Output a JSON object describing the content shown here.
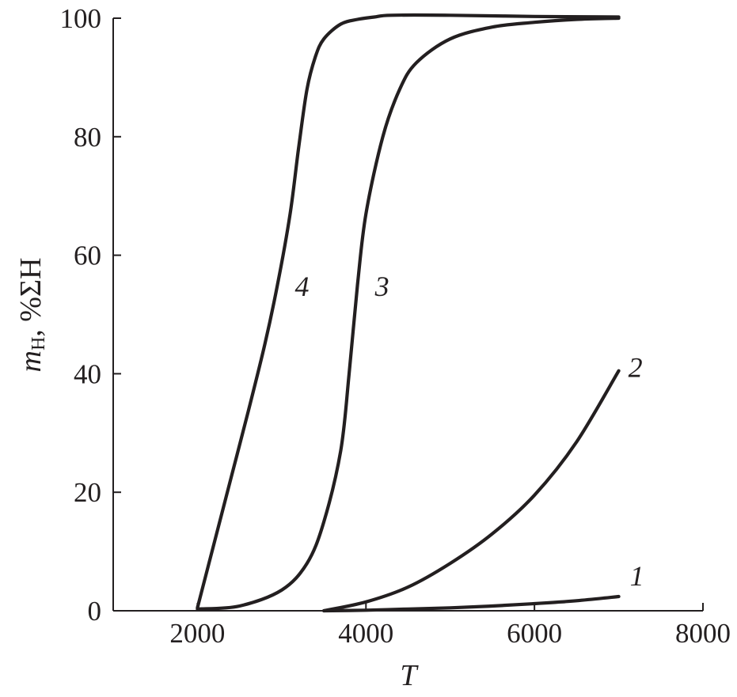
{
  "chart_data": {
    "type": "line",
    "title": "",
    "xlabel": "T",
    "ylabel": {
      "main": "m",
      "subscript": "H",
      "suffix": ", %ΣH"
    },
    "xlim": [
      1000,
      8000
    ],
    "ylim": [
      0,
      100
    ],
    "xticks": [
      2000,
      4000,
      6000,
      8000
    ],
    "yticks": [
      0,
      20,
      40,
      60,
      80,
      100
    ],
    "grid": false,
    "legend": "none",
    "series": [
      {
        "name": "1",
        "x": [
          3500,
          4000,
          4500,
          5000,
          5500,
          6000,
          6500,
          7000
        ],
        "y": [
          0.0,
          0.1,
          0.3,
          0.5,
          0.8,
          1.2,
          1.7,
          2.4
        ]
      },
      {
        "name": "2",
        "x": [
          3500,
          4000,
          4500,
          5000,
          5500,
          6000,
          6500,
          7000
        ],
        "y": [
          0.0,
          1.5,
          4.0,
          8.0,
          13.0,
          19.5,
          28.5,
          40.5
        ]
      },
      {
        "name": "3",
        "x": [
          2000,
          2500,
          3000,
          3300,
          3500,
          3700,
          3800,
          3900,
          4000,
          4200,
          4400,
          4600,
          5000,
          5500,
          6000,
          6500,
          7000
        ],
        "y": [
          0.3,
          0.8,
          3.5,
          8.0,
          15.0,
          27.0,
          40.0,
          55.0,
          67.0,
          80.0,
          88.0,
          92.5,
          96.5,
          98.5,
          99.3,
          99.8,
          100.0
        ]
      },
      {
        "name": "4",
        "x": [
          2000,
          2200,
          2400,
          2600,
          2800,
          2950,
          3100,
          3200,
          3300,
          3400,
          3500,
          3700,
          3900,
          4100,
          4300,
          5000,
          6000,
          7000
        ],
        "y": [
          0.5,
          11.5,
          22.5,
          33.5,
          45.0,
          55.0,
          67.0,
          78.0,
          88.0,
          93.5,
          96.5,
          99.0,
          99.8,
          100.2,
          100.5,
          100.5,
          100.3,
          100.2
        ]
      }
    ]
  }
}
